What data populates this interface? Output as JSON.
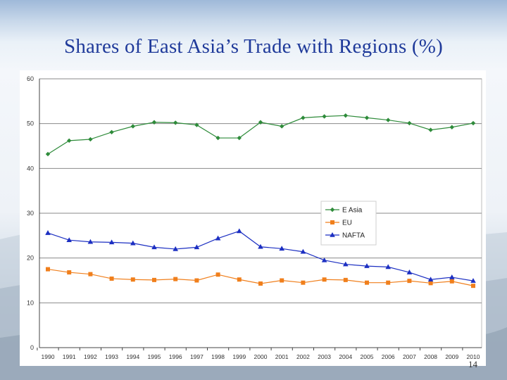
{
  "slide": {
    "title": "Shares of East Asia’s Trade with Regions (%)",
    "page_number": "14"
  },
  "chart_data": {
    "type": "line",
    "title": "Shares of East Asia’s Trade with Regions (%)",
    "xlabel": "",
    "ylabel": "",
    "ylim": [
      0,
      60
    ],
    "yticks": [
      0,
      10,
      20,
      30,
      40,
      50,
      60
    ],
    "grid": true,
    "legend_position": "center-right",
    "categories": [
      "1990",
      "1991",
      "1992",
      "1993",
      "1994",
      "1995",
      "1996",
      "1997",
      "1998",
      "1999",
      "2000",
      "2001",
      "2002",
      "2003",
      "2004",
      "2005",
      "2006",
      "2007",
      "2008",
      "2009",
      "2010"
    ],
    "series": [
      {
        "name": "E Asia",
        "color": "#2e8b3a",
        "marker": "diamond",
        "values": [
          43.2,
          46.2,
          46.5,
          48.1,
          49.4,
          50.3,
          50.2,
          49.7,
          46.8,
          46.8,
          50.3,
          49.4,
          51.3,
          51.6,
          51.8,
          51.3,
          50.8,
          50.1,
          48.6,
          49.2,
          50.1
        ]
      },
      {
        "name": "EU",
        "color": "#f07f1c",
        "marker": "square",
        "values": [
          17.5,
          16.8,
          16.4,
          15.4,
          15.2,
          15.1,
          15.3,
          15.0,
          16.3,
          15.2,
          14.3,
          15.0,
          14.5,
          15.2,
          15.1,
          14.5,
          14.5,
          14.9,
          14.4,
          14.8,
          13.8
        ]
      },
      {
        "name": "NAFTA",
        "color": "#1c2fc2",
        "marker": "triangle",
        "values": [
          25.6,
          24.0,
          23.6,
          23.5,
          23.3,
          22.4,
          22.0,
          22.4,
          24.4,
          26.0,
          22.5,
          22.1,
          21.4,
          19.5,
          18.6,
          18.2,
          18.0,
          16.8,
          15.2,
          15.7,
          14.9
        ]
      }
    ]
  },
  "colors": {
    "title": "#1f3a9a",
    "plot_background": "#ffffff",
    "gridline": "#8a8a8a",
    "axis": "#444444"
  }
}
